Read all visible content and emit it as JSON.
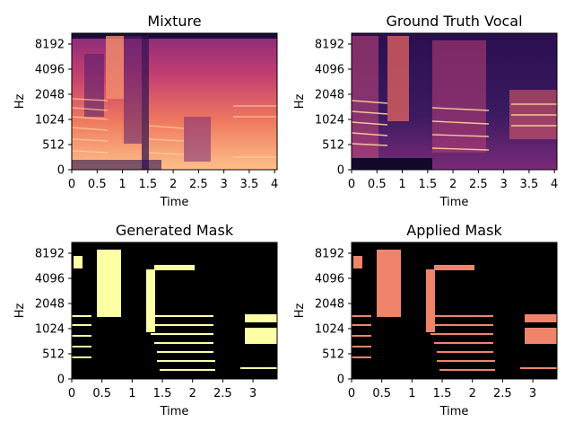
{
  "chart_data": [
    {
      "type": "heatmap",
      "title": "Mixture",
      "xlabel": "Time",
      "ylabel": "Hz",
      "x_ticks": [
        "0",
        "0.5",
        "1",
        "1.5",
        "2",
        "2.5",
        "3",
        "3.5",
        "4"
      ],
      "x_tick_values": [
        0,
        0.5,
        1,
        1.5,
        2,
        2.5,
        3,
        3.5,
        4
      ],
      "xlim": [
        0,
        4.05
      ],
      "y_ticks": [
        "0",
        "512",
        "1024",
        "2048",
        "4096",
        "8192"
      ],
      "y_scale": "log-like (mel)",
      "colormap": "magma",
      "colors": {
        "low": "#000004",
        "mid": "#b73779",
        "high": "#fcfdbf"
      }
    },
    {
      "type": "heatmap",
      "title": "Ground Truth Vocal",
      "xlabel": "Time",
      "ylabel": "Hz",
      "x_ticks": [
        "0",
        "0.5",
        "1",
        "1.5",
        "2",
        "2.5",
        "3",
        "3.5",
        "4"
      ],
      "x_tick_values": [
        0,
        0.5,
        1,
        1.5,
        2,
        2.5,
        3,
        3.5,
        4
      ],
      "xlim": [
        0,
        4.05
      ],
      "y_ticks": [
        "0",
        "512",
        "1024",
        "2048",
        "4096",
        "8192"
      ],
      "y_scale": "log-like (mel)",
      "colormap": "magma",
      "colors": {
        "low": "#000004",
        "mid": "#b73779",
        "high": "#fcfdbf"
      }
    },
    {
      "type": "heatmap",
      "title": "Generated Mask",
      "xlabel": "Time",
      "ylabel": "Hz",
      "x_ticks": [
        "0",
        "0.5",
        "1",
        "1.5",
        "2",
        "2.5",
        "3"
      ],
      "x_tick_values": [
        0,
        0.5,
        1,
        1.5,
        2,
        2.5,
        3
      ],
      "xlim": [
        0,
        3.4
      ],
      "y_ticks": [
        "0",
        "512",
        "1024",
        "2048",
        "4096",
        "8192"
      ],
      "y_scale": "log-like (mel)",
      "colormap": "binary mask",
      "colors": {
        "off": "#000000",
        "on": "#fcffa4"
      }
    },
    {
      "type": "heatmap",
      "title": "Applied Mask",
      "xlabel": "Time",
      "ylabel": "Hz",
      "x_ticks": [
        "0",
        "0.5",
        "1",
        "1.5",
        "2",
        "2.5",
        "3"
      ],
      "x_tick_values": [
        0,
        0.5,
        1,
        1.5,
        2,
        2.5,
        3
      ],
      "xlim": [
        0,
        3.4
      ],
      "y_ticks": [
        "0",
        "512",
        "1024",
        "2048",
        "4096",
        "8192"
      ],
      "y_scale": "log-like (mel)",
      "colormap": "magma (masked)",
      "colors": {
        "off": "#000000",
        "on": "#f0846a"
      }
    }
  ]
}
